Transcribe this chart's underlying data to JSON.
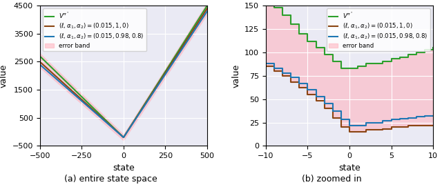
{
  "left": {
    "xlim": [
      -500,
      500
    ],
    "ylim": [
      -500,
      4500
    ],
    "xlabel": "state",
    "ylabel": "value",
    "xticks": [
      -500,
      -250,
      0,
      250,
      500
    ],
    "yticks": [
      -500,
      500,
      1500,
      2500,
      3500,
      4500
    ]
  },
  "right": {
    "xlim": [
      -10,
      10
    ],
    "ylim": [
      0,
      150
    ],
    "xlabel": "state",
    "ylabel": "value",
    "xticks": [
      -10,
      -5,
      0,
      5,
      10
    ],
    "yticks": [
      0,
      25,
      50,
      75,
      100,
      125,
      150
    ]
  },
  "legend": {
    "vpi_label": "$V^{\\pi^*}$",
    "line1_label": "$(\\ell, \\alpha_1, \\alpha_2) = (0.015, 1, 0)$",
    "line2_label": "$(\\ell, \\alpha_1, \\alpha_2) = (0.015, 0.98, 0.8)$",
    "error_label": "error band"
  },
  "colors": {
    "vpi": "#2ca02c",
    "line1": "#8B4513",
    "line2": "#1f77b4",
    "error_band": "#ffb6c1",
    "error_band_alpha": 0.6
  },
  "caption_left": "(a) entire state space",
  "caption_right": "(b) zoomed in",
  "background_color": "#eaeaf4"
}
